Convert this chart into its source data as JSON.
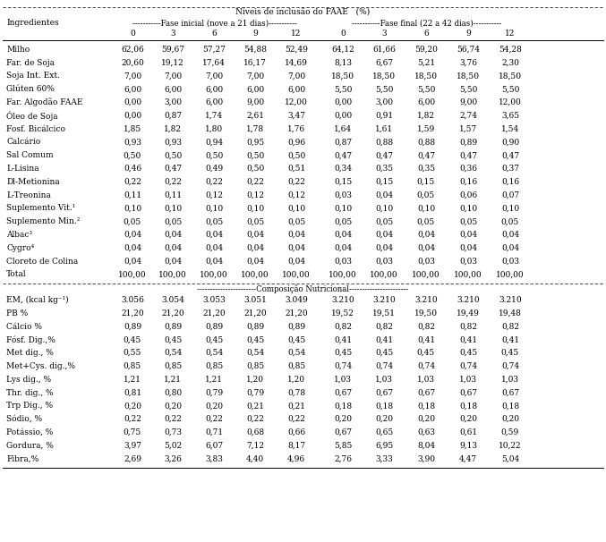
{
  "title_top": "Níveis de inclusão do FAAE   (%)",
  "header1": "Ingredientes",
  "header2a": "Fase inicial (nove a 21 dias)",
  "header2b": "Fase final (22 a 42 dias)",
  "col_levels": [
    "0",
    "3",
    "6",
    "9",
    "12",
    "0",
    "3",
    "6",
    "9",
    "12"
  ],
  "rows_ingredients": [
    [
      "Milho",
      "62,06",
      "59,67",
      "57,27",
      "54,88",
      "52,49",
      "64,12",
      "61,66",
      "59,20",
      "56,74",
      "54,28"
    ],
    [
      "Far. de Soja",
      "20,60",
      "19,12",
      "17,64",
      "16,17",
      "14,69",
      "8,13",
      "6,67",
      "5,21",
      "3,76",
      "2,30"
    ],
    [
      "Soja Int. Ext.",
      "7,00",
      "7,00",
      "7,00",
      "7,00",
      "7,00",
      "18,50",
      "18,50",
      "18,50",
      "18,50",
      "18,50"
    ],
    [
      "Glúten 60%",
      "6,00",
      "6,00",
      "6,00",
      "6,00",
      "6,00",
      "5,50",
      "5,50",
      "5,50",
      "5,50",
      "5,50"
    ],
    [
      "Far. Algodão FAAE",
      "0,00",
      "3,00",
      "6,00",
      "9,00",
      "12,00",
      "0,00",
      "3,00",
      "6,00",
      "9,00",
      "12,00"
    ],
    [
      "Óleo de Soja",
      "0,00",
      "0,87",
      "1,74",
      "2,61",
      "3,47",
      "0,00",
      "0,91",
      "1,82",
      "2,74",
      "3,65"
    ],
    [
      "Fosf. Bicálcico",
      "1,85",
      "1,82",
      "1,80",
      "1,78",
      "1,76",
      "1,64",
      "1,61",
      "1,59",
      "1,57",
      "1,54"
    ],
    [
      "Calcário",
      "0,93",
      "0,93",
      "0,94",
      "0,95",
      "0,96",
      "0,87",
      "0,88",
      "0,88",
      "0,89",
      "0,90"
    ],
    [
      "Sal Comum",
      "0,50",
      "0,50",
      "0,50",
      "0,50",
      "0,50",
      "0,47",
      "0,47",
      "0,47",
      "0,47",
      "0,47"
    ],
    [
      "L-Lisina",
      "0,46",
      "0,47",
      "0,49",
      "0,50",
      "0,51",
      "0,34",
      "0,35",
      "0,35",
      "0,36",
      "0,37"
    ],
    [
      "Dl-Metionina",
      "0,22",
      "0,22",
      "0,22",
      "0,22",
      "0,22",
      "0,15",
      "0,15",
      "0,15",
      "0,16",
      "0,16"
    ],
    [
      "L-Treonina",
      "0,11",
      "0,11",
      "0,12",
      "0,12",
      "0,12",
      "0,03",
      "0,04",
      "0,05",
      "0,06",
      "0,07"
    ],
    [
      "Suplemento Vit.¹",
      "0,10",
      "0,10",
      "0,10",
      "0,10",
      "0,10",
      "0,10",
      "0,10",
      "0,10",
      "0,10",
      "0,10"
    ],
    [
      "Suplemento Min.²",
      "0,05",
      "0,05",
      "0,05",
      "0,05",
      "0,05",
      "0,05",
      "0,05",
      "0,05",
      "0,05",
      "0,05"
    ],
    [
      "Albac³",
      "0,04",
      "0,04",
      "0,04",
      "0,04",
      "0,04",
      "0,04",
      "0,04",
      "0,04",
      "0,04",
      "0,04"
    ],
    [
      "Cygro⁴",
      "0,04",
      "0,04",
      "0,04",
      "0,04",
      "0,04",
      "0,04",
      "0,04",
      "0,04",
      "0,04",
      "0,04"
    ],
    [
      "Cloreto de Colina",
      "0,04",
      "0,04",
      "0,04",
      "0,04",
      "0,04",
      "0,03",
      "0,03",
      "0,03",
      "0,03",
      "0,03"
    ],
    [
      "Total",
      "100,00",
      "100,00",
      "100,00",
      "100,00",
      "100,00",
      "100,00",
      "100,00",
      "100,00",
      "100,00",
      "100,00"
    ]
  ],
  "section_nutricional": "Composição Nutricional",
  "rows_nutricional": [
    [
      "EM, (kcal kg⁻¹)",
      "3.056",
      "3.054",
      "3.053",
      "3.051",
      "3.049",
      "3.210",
      "3.210",
      "3.210",
      "3.210",
      "3.210"
    ],
    [
      "PB %",
      "21,20",
      "21,20",
      "21,20",
      "21,20",
      "21,20",
      "19,52",
      "19,51",
      "19,50",
      "19,49",
      "19,48"
    ],
    [
      "Cálcio %",
      "0,89",
      "0,89",
      "0,89",
      "0,89",
      "0,89",
      "0,82",
      "0,82",
      "0,82",
      "0,82",
      "0,82"
    ],
    [
      "Fósf. Dig.,%",
      "0,45",
      "0,45",
      "0,45",
      "0,45",
      "0,45",
      "0,41",
      "0,41",
      "0,41",
      "0,41",
      "0,41"
    ],
    [
      "Met dig., %",
      "0,55",
      "0,54",
      "0,54",
      "0,54",
      "0,54",
      "0,45",
      "0,45",
      "0,45",
      "0,45",
      "0,45"
    ],
    [
      "Met+Cys. dig.,%",
      "0,85",
      "0,85",
      "0,85",
      "0,85",
      "0,85",
      "0,74",
      "0,74",
      "0,74",
      "0,74",
      "0,74"
    ],
    [
      "Lys dig., %",
      "1,21",
      "1,21",
      "1,21",
      "1,20",
      "1,20",
      "1,03",
      "1,03",
      "1,03",
      "1,03",
      "1,03"
    ],
    [
      "Thr. dig., %",
      "0,81",
      "0,80",
      "0,79",
      "0,79",
      "0,78",
      "0,67",
      "0,67",
      "0,67",
      "0,67",
      "0,67"
    ],
    [
      "Trp Dig., %",
      "0,20",
      "0,20",
      "0,20",
      "0,21",
      "0,21",
      "0,18",
      "0,18",
      "0,18",
      "0,18",
      "0,18"
    ],
    [
      "Sódio, %",
      "0,22",
      "0,22",
      "0,22",
      "0,22",
      "0,22",
      "0,20",
      "0,20",
      "0,20",
      "0,20",
      "0,20"
    ],
    [
      "Potássio, %",
      "0,75",
      "0,73",
      "0,71",
      "0,68",
      "0,66",
      "0,67",
      "0,65",
      "0,63",
      "0,61",
      "0,59"
    ],
    [
      "Gordura, %",
      "3,97",
      "5,02",
      "6,07",
      "7,12",
      "8,17",
      "5,85",
      "6,95",
      "8,04",
      "9,13",
      "10,22"
    ],
    [
      "Fibra,%",
      "2,69",
      "3,26",
      "3,83",
      "4,40",
      "4,96",
      "2,76",
      "3,33",
      "3,90",
      "4,47",
      "5,04"
    ]
  ],
  "bg_color": "#ffffff",
  "text_color": "#000000",
  "font_size": 6.5,
  "header_font_size": 6.5
}
